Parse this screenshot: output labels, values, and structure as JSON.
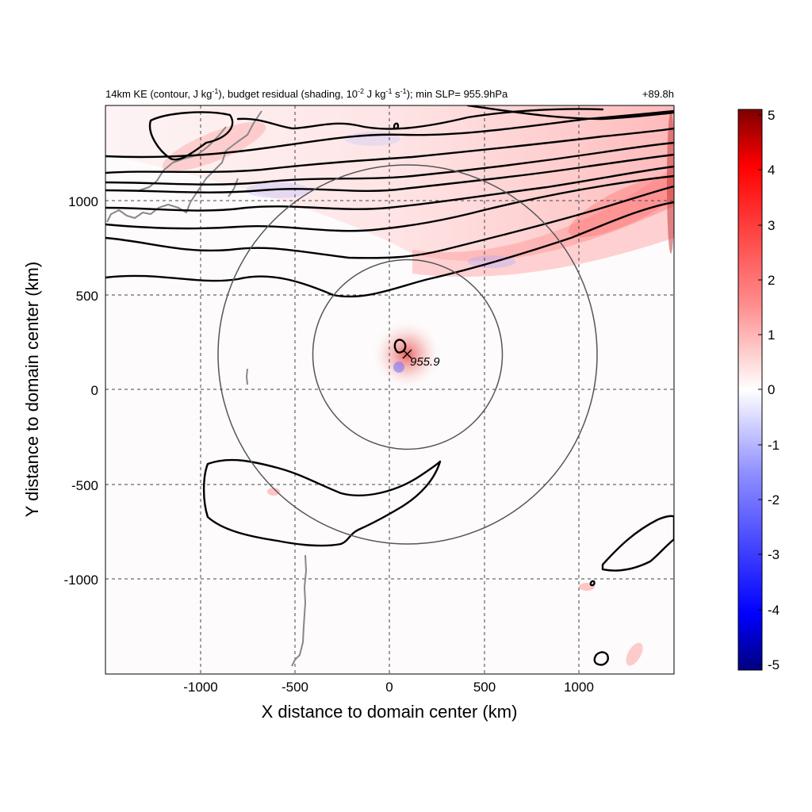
{
  "chart_data": {
    "type": "heatmap",
    "title_left_parts": {
      "a": "14km KE (contour, J kg",
      "a_sup": "-1",
      "b": "), budget residual (shading, 10",
      "b_sup": "-2",
      "c": " J kg",
      "c_sup": "-1",
      "d": " s",
      "d_sup": "-1",
      "e": "); min SLP= 955.9hPa"
    },
    "title_right": "+89.8h",
    "xlabel": "X distance to domain center (km)",
    "ylabel": "Y distance to domain center (km)",
    "xlim": [
      -1500,
      1500
    ],
    "ylim": [
      -1500,
      1500
    ],
    "xticks": [
      -1000,
      -500,
      0,
      500,
      1000
    ],
    "yticks": [
      -1000,
      -500,
      0,
      500,
      1000
    ],
    "grid": true,
    "colorbar": {
      "min": -5,
      "max": 5,
      "ticks": [
        5,
        4,
        3,
        2,
        1,
        0,
        -1,
        -2,
        -3,
        -4,
        -5
      ],
      "colors": [
        "#00007f",
        "#0000ff",
        "#ffffff",
        "#ff0000",
        "#7f0000"
      ]
    },
    "storm_center": {
      "x": 95,
      "y": 185,
      "min_slp_label": "955.9"
    },
    "rings_radius_km": [
      500,
      1000
    ],
    "min_slp_hpa": 955.9
  }
}
